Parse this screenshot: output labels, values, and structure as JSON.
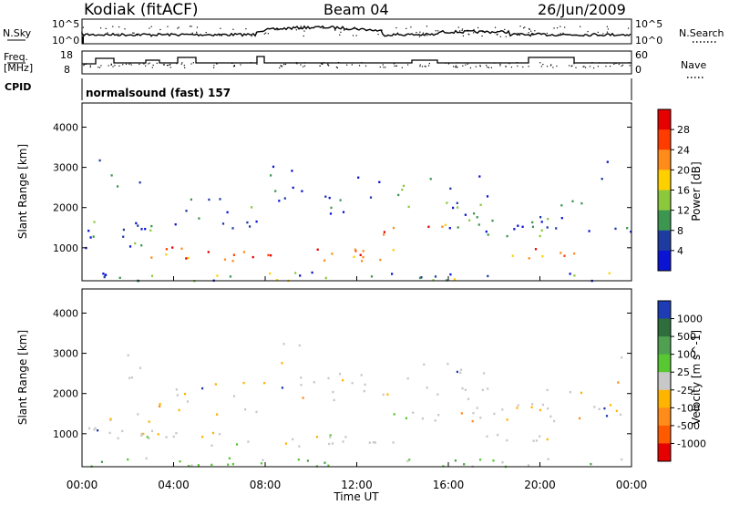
{
  "header": {
    "title": "Kodiak (fitACF)",
    "beam": "Beam 04",
    "date": "26/Jun/2009"
  },
  "strip": {
    "nsky_label": "N.Sky",
    "nsky_ticks": [
      "10^5",
      "10^0"
    ],
    "nsearch_label": "N.Search",
    "nsearch_ticks": [
      "10^5",
      "10^0"
    ],
    "freq_label_1": "Freq.",
    "freq_label_2": "[MHz]",
    "freq_ticks": [
      "18",
      "8"
    ],
    "nave_label": "Nave",
    "nave_ticks": [
      "60",
      "0"
    ],
    "cpid_label": "CPID",
    "cpid_value": "normalsound (fast) 157"
  },
  "chart_data": [
    {
      "type": "heatmap",
      "name": "power-panel",
      "ylabel": "Slant Range [km]",
      "yticks": [
        1000,
        2000,
        3000,
        4000
      ],
      "ylim": [
        180,
        4600
      ],
      "xlim": [
        0,
        24
      ],
      "colorbar": {
        "label": "Power [dB]",
        "ticks": [
          "28",
          "24",
          "20",
          "16",
          "12",
          "8",
          "4"
        ],
        "colors": [
          "#e60000",
          "#ff3c00",
          "#ff8c1a",
          "#ffd000",
          "#8cc83c",
          "#3c9650",
          "#1e3ca0",
          "#0a14d2"
        ]
      }
    },
    {
      "type": "heatmap",
      "name": "velocity-panel",
      "ylabel": "Slant Range [km]",
      "yticks": [
        1000,
        2000,
        3000,
        4000
      ],
      "ylim": [
        180,
        4600
      ],
      "xlim": [
        0,
        24
      ],
      "xlabel": "Time UT",
      "xticks": [
        "00:00",
        "04:00",
        "08:00",
        "12:00",
        "16:00",
        "20:00",
        "00:00"
      ],
      "colorbar": {
        "label": "Velocity [m s^-1]",
        "ticks": [
          "1000",
          "500",
          "100",
          "25",
          "-25",
          "-100",
          "-500",
          "-1000"
        ],
        "colors": [
          "#1e3cb4",
          "#2e6e3c",
          "#4fa050",
          "#58c832",
          "#c8c8c8",
          "#ffb400",
          "#ff8c1a",
          "#ff5a00",
          "#e60000"
        ]
      }
    }
  ]
}
